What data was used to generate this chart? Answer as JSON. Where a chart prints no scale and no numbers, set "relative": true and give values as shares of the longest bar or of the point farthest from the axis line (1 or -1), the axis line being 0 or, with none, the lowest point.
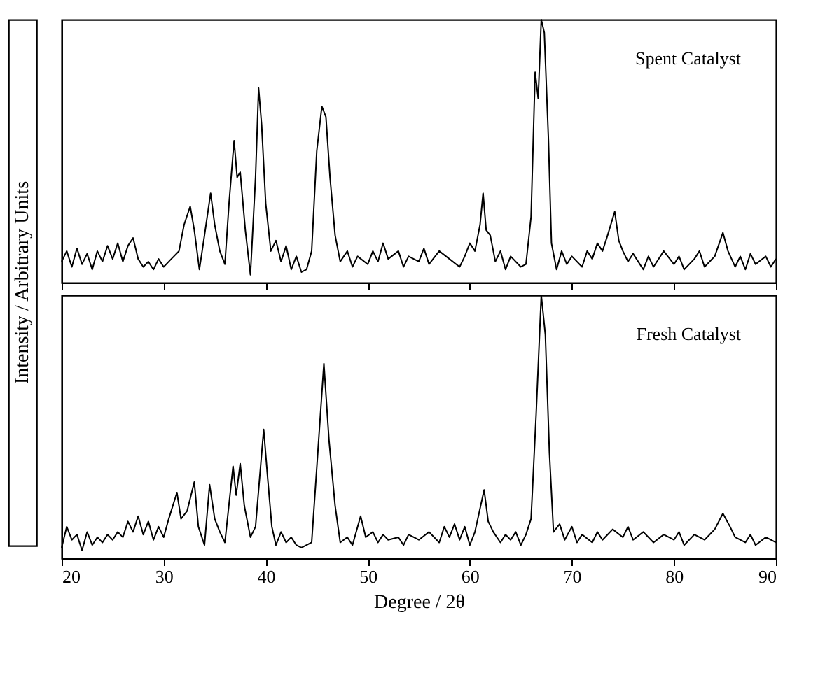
{
  "chart_data": [
    {
      "type": "line",
      "relative": true,
      "ylabel": "Intensity / Arbitrary Units",
      "xlim": [
        20,
        90
      ],
      "xticks": [
        20,
        30,
        40,
        50,
        60,
        70,
        80,
        90
      ],
      "tick_labels": false,
      "grid": false,
      "legend": false,
      "marker": "none",
      "line_style": "solid",
      "x": [
        20,
        20.5,
        21,
        21.5,
        22,
        22.5,
        23,
        23.5,
        24,
        24.5,
        25,
        25.5,
        26,
        26.5,
        27,
        27.5,
        28,
        28.5,
        29,
        29.5,
        30,
        30.5,
        31,
        31.5,
        32,
        32.6,
        33,
        33.5,
        34,
        34.6,
        35,
        35.5,
        36,
        36.4,
        36.9,
        37.2,
        37.5,
        38,
        38.5,
        39,
        39.3,
        39.6,
        40,
        40.5,
        41,
        41.5,
        42,
        42.5,
        43,
        43.5,
        44,
        44.5,
        45,
        45.5,
        45.9,
        46.3,
        46.8,
        47.3,
        48,
        48.5,
        49,
        50,
        50.5,
        51,
        51.5,
        52,
        53,
        53.5,
        54,
        55,
        55.5,
        56,
        57,
        58,
        59,
        59.5,
        60,
        60.5,
        61,
        61.3,
        61.6,
        62,
        62.5,
        63,
        63.5,
        64,
        65,
        65.5,
        66,
        66.4,
        66.7,
        67,
        67.3,
        67.7,
        68,
        68.5,
        69,
        69.5,
        70,
        71,
        71.5,
        72,
        72.5,
        73,
        73.5,
        74.2,
        74.6,
        75,
        75.5,
        76,
        77,
        77.5,
        78,
        79,
        80,
        80.5,
        81,
        82,
        82.5,
        83,
        84,
        84.8,
        85.3,
        86,
        86.5,
        87,
        87.5,
        88,
        89,
        89.5,
        90
      ],
      "series": [
        {
          "name": "Spent Catalyst",
          "color": "#000000",
          "values": [
            0.08,
            0.12,
            0.06,
            0.13,
            0.07,
            0.11,
            0.05,
            0.12,
            0.08,
            0.14,
            0.09,
            0.15,
            0.08,
            0.14,
            0.17,
            0.09,
            0.06,
            0.08,
            0.05,
            0.09,
            0.06,
            0.08,
            0.1,
            0.12,
            0.22,
            0.29,
            0.2,
            0.05,
            0.18,
            0.34,
            0.22,
            0.12,
            0.07,
            0.3,
            0.54,
            0.4,
            0.42,
            0.2,
            0.03,
            0.4,
            0.74,
            0.6,
            0.3,
            0.12,
            0.16,
            0.08,
            0.14,
            0.05,
            0.1,
            0.04,
            0.05,
            0.12,
            0.5,
            0.67,
            0.63,
            0.4,
            0.18,
            0.08,
            0.12,
            0.06,
            0.1,
            0.07,
            0.12,
            0.08,
            0.15,
            0.09,
            0.12,
            0.06,
            0.1,
            0.08,
            0.13,
            0.07,
            0.12,
            0.09,
            0.06,
            0.1,
            0.15,
            0.12,
            0.22,
            0.34,
            0.2,
            0.18,
            0.08,
            0.12,
            0.05,
            0.1,
            0.06,
            0.07,
            0.25,
            0.8,
            0.7,
            1.0,
            0.95,
            0.55,
            0.15,
            0.05,
            0.12,
            0.07,
            0.1,
            0.06,
            0.12,
            0.09,
            0.15,
            0.12,
            0.18,
            0.27,
            0.16,
            0.12,
            0.08,
            0.11,
            0.05,
            0.1,
            0.06,
            0.12,
            0.07,
            0.1,
            0.05,
            0.09,
            0.12,
            0.06,
            0.1,
            0.19,
            0.12,
            0.06,
            0.1,
            0.05,
            0.11,
            0.07,
            0.1,
            0.06,
            0.09
          ]
        }
      ]
    },
    {
      "type": "line",
      "relative": true,
      "xlabel": "Degree / 2θ",
      "xlim": [
        20,
        90
      ],
      "xticks": [
        20,
        30,
        40,
        50,
        60,
        70,
        80,
        90
      ],
      "tick_labels": "x",
      "grid": false,
      "legend": false,
      "marker": "none",
      "line_style": "solid",
      "x": [
        20,
        20.5,
        21,
        21.5,
        22,
        22.5,
        23,
        23.5,
        24,
        24.5,
        25,
        25.5,
        26,
        26.5,
        27,
        27.5,
        28,
        28.5,
        29,
        29.5,
        30,
        30.5,
        31.3,
        31.7,
        32.3,
        33,
        33.4,
        34,
        34.5,
        35,
        35.5,
        36,
        36.8,
        37.1,
        37.5,
        37.9,
        38.5,
        39,
        39.8,
        40.2,
        40.6,
        41,
        41.5,
        42,
        42.5,
        43,
        43.5,
        44.5,
        45.1,
        45.7,
        46.2,
        46.8,
        47.3,
        48,
        48.5,
        49.3,
        49.8,
        50.5,
        51,
        51.5,
        52,
        53,
        53.5,
        54,
        55,
        56,
        57,
        57.5,
        58,
        58.5,
        59,
        59.5,
        60,
        60.5,
        61.4,
        61.8,
        62.3,
        63,
        63.5,
        64,
        64.5,
        65,
        65.5,
        66,
        66.5,
        67,
        67.4,
        67.8,
        68.2,
        68.8,
        69.3,
        70,
        70.5,
        71,
        72,
        72.5,
        73,
        74,
        75,
        75.5,
        76,
        77,
        78,
        79,
        80,
        80.5,
        81,
        82,
        83,
        84,
        84.8,
        85.5,
        86,
        87,
        87.5,
        88,
        89,
        90
      ],
      "series": [
        {
          "name": "Fresh Catalyst",
          "color": "#000000",
          "values": [
            0.04,
            0.12,
            0.07,
            0.09,
            0.03,
            0.1,
            0.05,
            0.08,
            0.06,
            0.09,
            0.07,
            0.1,
            0.08,
            0.14,
            0.1,
            0.16,
            0.09,
            0.14,
            0.07,
            0.12,
            0.08,
            0.15,
            0.25,
            0.15,
            0.18,
            0.29,
            0.12,
            0.05,
            0.28,
            0.15,
            0.1,
            0.06,
            0.35,
            0.24,
            0.36,
            0.2,
            0.08,
            0.12,
            0.49,
            0.3,
            0.12,
            0.05,
            0.1,
            0.06,
            0.08,
            0.05,
            0.04,
            0.06,
            0.4,
            0.74,
            0.45,
            0.2,
            0.06,
            0.08,
            0.05,
            0.16,
            0.08,
            0.1,
            0.06,
            0.09,
            0.07,
            0.08,
            0.05,
            0.09,
            0.07,
            0.1,
            0.06,
            0.12,
            0.08,
            0.13,
            0.07,
            0.12,
            0.05,
            0.1,
            0.26,
            0.14,
            0.1,
            0.06,
            0.09,
            0.07,
            0.1,
            0.05,
            0.09,
            0.15,
            0.55,
            1.0,
            0.85,
            0.4,
            0.1,
            0.13,
            0.07,
            0.12,
            0.06,
            0.09,
            0.06,
            0.1,
            0.07,
            0.11,
            0.08,
            0.12,
            0.07,
            0.1,
            0.06,
            0.09,
            0.07,
            0.1,
            0.05,
            0.09,
            0.07,
            0.11,
            0.17,
            0.12,
            0.08,
            0.06,
            0.09,
            0.05,
            0.08,
            0.06
          ]
        }
      ]
    }
  ]
}
